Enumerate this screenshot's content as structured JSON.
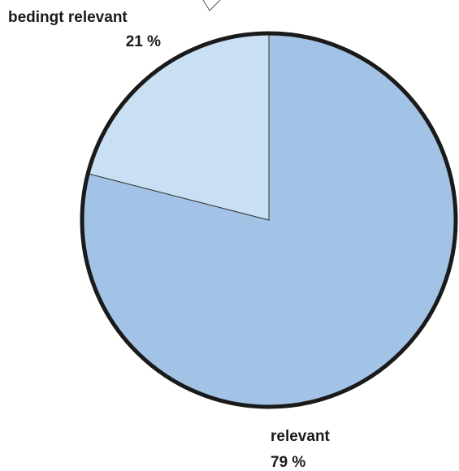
{
  "chart_data": {
    "type": "pie",
    "title": "",
    "slices": [
      {
        "label": "relevant",
        "value": 79,
        "value_label": "79 %",
        "color": "#a3c3e6"
      },
      {
        "label": "bedingt relevant",
        "value": 21,
        "value_label": "21 %",
        "color": "#c9dff4"
      }
    ],
    "start_angle_deg": 0,
    "direction": "clockwise",
    "outline_color": "#1a1a1a"
  }
}
